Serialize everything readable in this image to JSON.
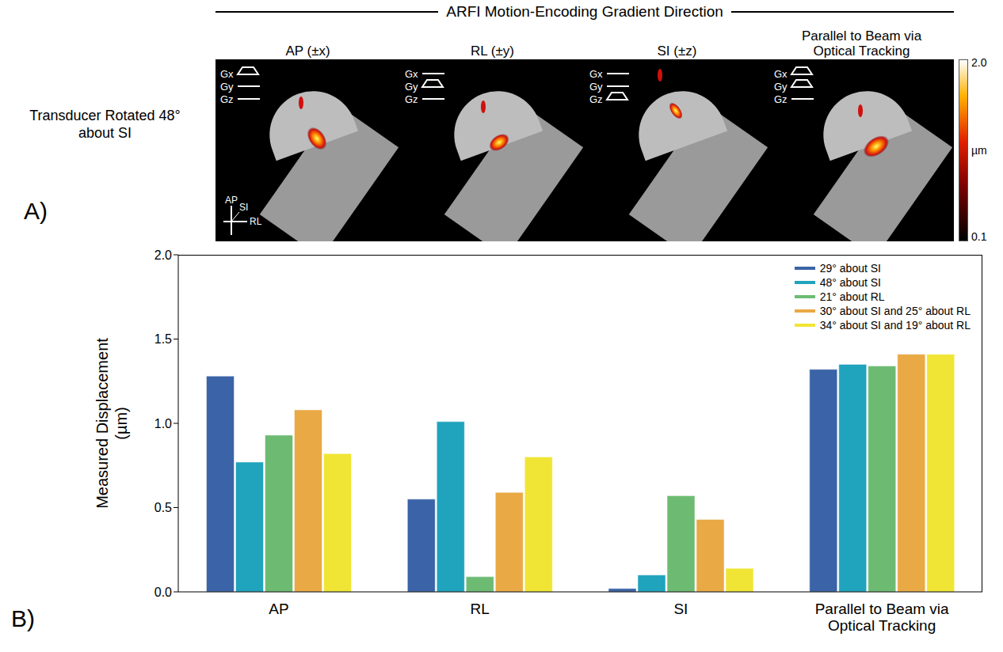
{
  "figure": {
    "header": "ARFI Motion-Encoding Gradient Direction",
    "panel_a": {
      "letter": "A)",
      "row_label": "Transducer Rotated 48° about SI",
      "gradient_labels": [
        "Gx",
        "Gy",
        "Gz"
      ],
      "columns": [
        {
          "title": "AP (±x)",
          "gradients_on": [
            "Gx"
          ]
        },
        {
          "title": "RL (±y)",
          "gradients_on": [
            "Gy"
          ]
        },
        {
          "title": "SI (±z)",
          "gradients_on": [
            "Gz"
          ]
        },
        {
          "title": "Parallel to Beam via Optical Tracking",
          "gradients_on": [
            "Gx",
            "Gy"
          ]
        }
      ],
      "orientation_labels": [
        "AP",
        "SI",
        "RL"
      ],
      "colorbar": {
        "range": [
          0.1,
          2.0
        ],
        "ticks": [
          {
            "value": 2.0,
            "label": "2.0"
          },
          {
            "value": 0.1,
            "label": "0.1"
          }
        ],
        "label": "µm"
      }
    },
    "panel_b_letter": "B)"
  },
  "chart_data": {
    "type": "bar",
    "y_label": "Measured Displacement (µm)",
    "categories": [
      "AP",
      "RL",
      "SI",
      "Parallel to Beam via Optical Tracking"
    ],
    "series": [
      {
        "name": "29° about SI",
        "color": "#3b63a7",
        "values": [
          1.28,
          0.55,
          0.02,
          1.32
        ]
      },
      {
        "name": "48° about SI",
        "color": "#20a3bd",
        "values": [
          0.77,
          1.01,
          0.1,
          1.35
        ]
      },
      {
        "name": "21° about RL",
        "color": "#6dbb72",
        "values": [
          0.93,
          0.09,
          0.57,
          1.34
        ]
      },
      {
        "name": "30° about SI and 25° about RL",
        "color": "#e9a945",
        "values": [
          1.08,
          0.59,
          0.43,
          1.41
        ]
      },
      {
        "name": "34° about SI and 19° about RL",
        "color": "#f0e535",
        "values": [
          0.82,
          0.8,
          0.14,
          1.41
        ]
      }
    ],
    "ylim": [
      0,
      2
    ],
    "yticks": [
      {
        "value": 0,
        "label": "0.0"
      },
      {
        "value": 0.5,
        "label": "0.5"
      },
      {
        "value": 1,
        "label": "1.0"
      },
      {
        "value": 1.5,
        "label": "1.5"
      },
      {
        "value": 2,
        "label": "2.0"
      }
    ],
    "grid": false,
    "legend": "top-right"
  }
}
